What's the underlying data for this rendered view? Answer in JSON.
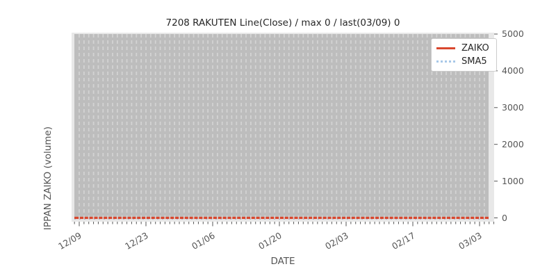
{
  "chart_data": {
    "type": "line",
    "title": "7208 RAKUTEN Line(Close) / max 0 / last(03/09) 0",
    "xlabel": "DATE",
    "ylabel": "IPPAN ZAIKO (volume)",
    "x_tick_labels": [
      "12/09",
      "12/23",
      "01/06",
      "01/20",
      "02/03",
      "02/17",
      "03/03"
    ],
    "x_minor_tick_interval": "1 day",
    "y_tick_labels": [
      "0",
      "1000",
      "2000",
      "3000",
      "4000",
      "5000"
    ],
    "y_tick_values": [
      0,
      1000,
      2000,
      3000,
      4000,
      5000
    ],
    "ylim": [
      -130,
      5040
    ],
    "series": [
      {
        "name": "ZAIKO",
        "style": "solid",
        "color": "#d9472e",
        "constant_value": 0,
        "note": "flat line at 0 across entire date range"
      },
      {
        "name": "SMA5",
        "style": "dotted",
        "color": "#a8c8e8",
        "constant_value": 0,
        "note": "flat line at 0, mostly hidden beneath ZAIKO line"
      }
    ],
    "stats": {
      "max": 0,
      "last_date": "03/09",
      "last_value": 0
    },
    "legend": {
      "position": "upper right",
      "entries": [
        "ZAIKO",
        "SMA5"
      ]
    },
    "grid": {
      "vertical_dashed_daily_gridlines": true
    },
    "colors": {
      "figure_bg": "#ffffff",
      "plot_bg": "#e8e8e8",
      "data_band": "#bdbdbd",
      "gridline": "#d3d3d3",
      "tick_text": "#555555",
      "title_text": "#262626"
    }
  }
}
